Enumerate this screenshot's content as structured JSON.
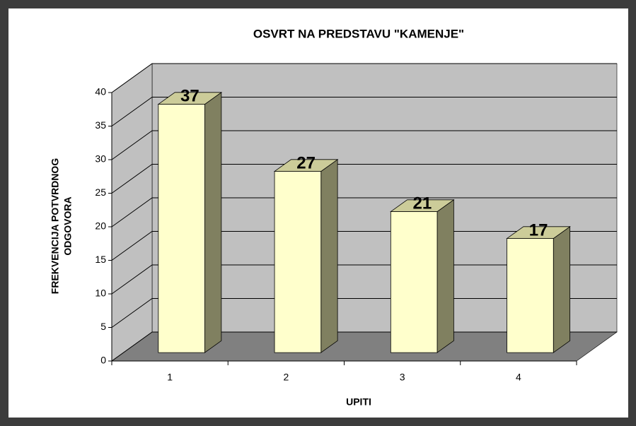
{
  "chart_data": {
    "type": "bar3d",
    "title": "OSVRT NA PREDSTAVU \"KAMENJE\"",
    "x_label": "UPITI",
    "y_label": [
      "FREKVENCIJA POTVRDNOG",
      "ODGOVORA"
    ],
    "categories": [
      "1",
      "2",
      "3",
      "4"
    ],
    "values": [
      37,
      27,
      21,
      17
    ],
    "color": "#ffffcc",
    "side_color": "#808060",
    "top_color": "#cccc99",
    "wall_color": "#c0c0c0",
    "floor_color": "#808080",
    "ylim": [
      0,
      40
    ],
    "yticks": [
      0,
      5,
      10,
      15,
      20,
      25,
      30,
      35,
      40
    ],
    "grid": true
  }
}
